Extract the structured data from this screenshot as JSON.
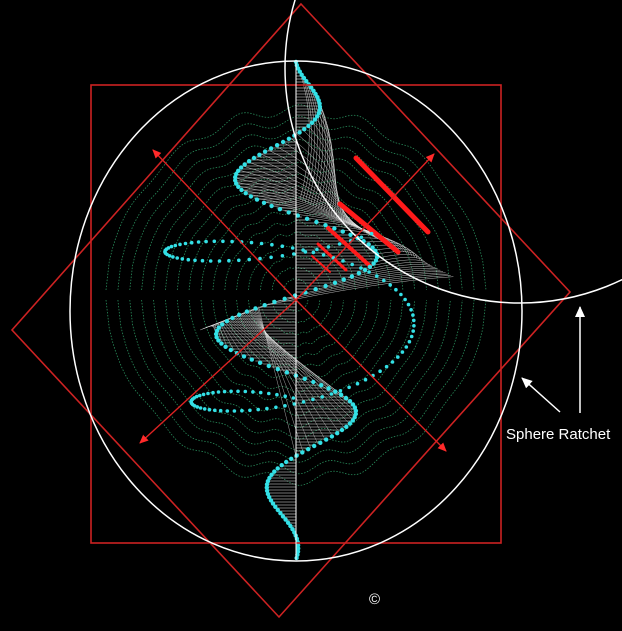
{
  "diagram": {
    "label": "Sphere Ratchet",
    "copyright": "©"
  },
  "colors": {
    "background": "#000000",
    "frame_red": "#cc2222",
    "circle_white": "#ffffff",
    "mesh_white": "#e8e8e8",
    "cyan_helix": "#33e0e6",
    "green_contours": "#2fa36a",
    "red_dash": "#ff1a1a"
  },
  "icons": [
    "arrow-up-icon",
    "arrow-diagonal-icon"
  ]
}
